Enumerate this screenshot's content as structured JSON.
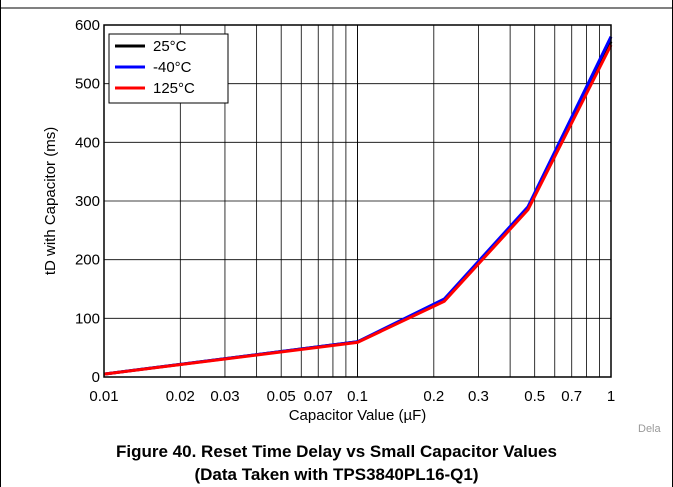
{
  "chart_data": {
    "type": "line",
    "title": "",
    "xlabel": "Capacitor Value (µF)",
    "ylabel": "tD with Capacitor (ms)",
    "xscale": "log",
    "xlim": [
      0.01,
      1
    ],
    "ylim": [
      0,
      600
    ],
    "x_ticks": [
      0.01,
      0.02,
      0.03,
      0.05,
      0.07,
      0.1,
      0.2,
      0.3,
      0.5,
      0.7,
      1
    ],
    "x_tick_labels": [
      "0.01",
      "0.02",
      "0.03",
      "0.05",
      "0.07",
      "0.1",
      "0.2",
      "0.3",
      "0.5",
      "0.7",
      "1"
    ],
    "y_ticks": [
      0,
      100,
      200,
      300,
      400,
      500,
      600
    ],
    "y_tick_labels": [
      "0",
      "100",
      "200",
      "300",
      "400",
      "500",
      "600"
    ],
    "grid": true,
    "legend_position": "top-left",
    "series": [
      {
        "name": "25°C",
        "color": "#000000",
        "x": [
          0.01,
          0.1,
          0.22,
          0.47,
          1.0
        ],
        "y": [
          5,
          60,
          130,
          287,
          572
        ]
      },
      {
        "name": "-40°C",
        "color": "#0000ff",
        "x": [
          0.01,
          0.1,
          0.22,
          0.47,
          1.0
        ],
        "y": [
          5,
          60,
          133,
          290,
          580
        ]
      },
      {
        "name": "125°C",
        "color": "#ff0000",
        "x": [
          0.01,
          0.1,
          0.22,
          0.47,
          1.0
        ],
        "y": [
          5,
          59,
          129,
          285,
          566
        ]
      }
    ]
  },
  "figure": {
    "caption_line1": "Figure 40. Reset Time Delay vs Small Capacitor Values",
    "caption_line2": "(Data Taken with TPS3840PL16-Q1)",
    "watermark": "Dela"
  }
}
